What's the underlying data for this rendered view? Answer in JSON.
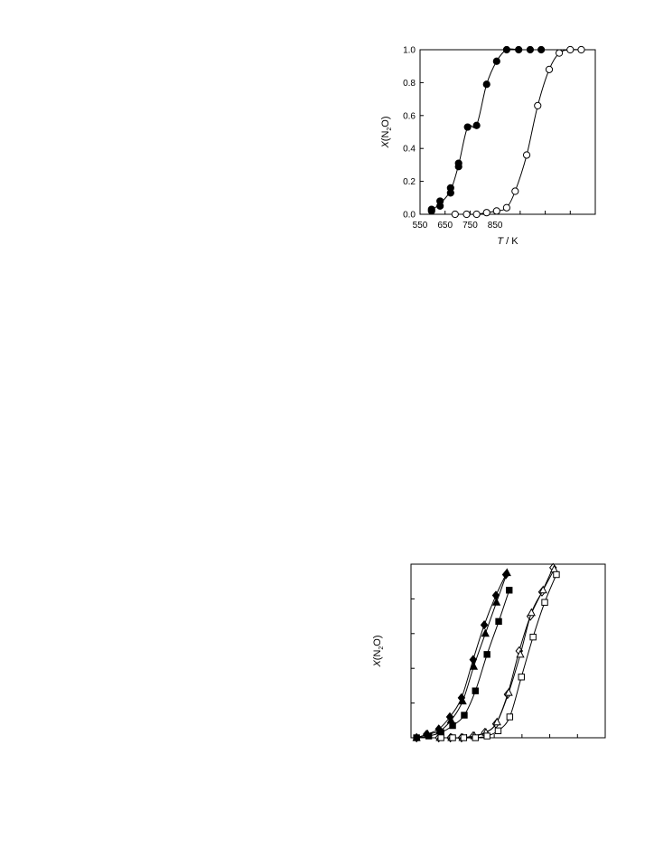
{
  "chart_data": [
    {
      "type": "scatter",
      "title": "",
      "xlabel": "T / K",
      "ylabel": "X(N2O)",
      "xlim": [
        550,
        900
      ],
      "ylim": [
        0,
        1.0
      ],
      "x_ticks": [
        "550",
        "650",
        "750",
        "850"
      ],
      "y_ticks": [
        "0.0",
        "0.2",
        "0.4",
        "0.6",
        "0.8",
        "1.0"
      ],
      "grid": false,
      "legend": "none",
      "series": [
        {
          "marker": "filled-circle",
          "x": [
            573,
            573,
            590,
            590,
            611,
            611,
            627,
            627,
            645,
            663,
            683,
            703,
            723,
            747,
            770,
            792
          ],
          "y": [
            0.02,
            0.03,
            0.05,
            0.08,
            0.13,
            0.16,
            0.29,
            0.31,
            0.53,
            0.54,
            0.79,
            0.93,
            1.0,
            1.0,
            1.0,
            1.0
          ]
        },
        {
          "marker": "open-circle",
          "x": [
            620,
            643,
            663,
            683,
            703,
            723,
            740,
            763,
            785,
            808,
            828,
            850,
            872
          ],
          "y": [
            0.0,
            0.0,
            0.0,
            0.01,
            0.02,
            0.04,
            0.14,
            0.36,
            0.66,
            0.88,
            0.98,
            1.0,
            1.0
          ]
        }
      ]
    },
    {
      "type": "scatter",
      "title": "",
      "xlabel": "",
      "ylabel": "X(N2O)",
      "xlim": [
        550,
        900
      ],
      "ylim": [
        0,
        1.0
      ],
      "x_ticks": [],
      "y_ticks": [],
      "grid": false,
      "legend": "none",
      "series": [
        {
          "marker": "filled-diamond",
          "x": [
            560,
            578,
            600,
            620,
            641,
            662,
            682,
            703,
            721
          ],
          "y": [
            0.0,
            0.02,
            0.05,
            0.12,
            0.23,
            0.45,
            0.65,
            0.82,
            0.94
          ]
        },
        {
          "marker": "filled-triangle",
          "x": [
            560,
            580,
            602,
            622,
            643,
            663,
            684,
            704,
            723
          ],
          "y": [
            0.0,
            0.02,
            0.04,
            0.1,
            0.21,
            0.41,
            0.6,
            0.78,
            0.95
          ]
        },
        {
          "marker": "filled-square",
          "x": [
            560,
            582,
            604,
            625,
            646,
            666,
            687,
            708,
            727
          ],
          "y": [
            0.0,
            0.01,
            0.03,
            0.07,
            0.13,
            0.27,
            0.48,
            0.67,
            0.85
          ]
        },
        {
          "marker": "open-diamond",
          "x": [
            600,
            621,
            641,
            662,
            683,
            703,
            724,
            745,
            765,
            786,
            806
          ],
          "y": [
            0.0,
            0.0,
            0.0,
            0.01,
            0.03,
            0.08,
            0.25,
            0.5,
            0.7,
            0.84,
            0.98
          ]
        },
        {
          "marker": "open-triangle",
          "x": [
            602,
            623,
            643,
            664,
            685,
            705,
            726,
            747,
            767,
            788,
            808
          ],
          "y": [
            0.0,
            0.0,
            0.0,
            0.01,
            0.03,
            0.09,
            0.26,
            0.48,
            0.72,
            0.85,
            0.97
          ]
        },
        {
          "marker": "open-square",
          "x": [
            604,
            625,
            645,
            666,
            687,
            707,
            728,
            749,
            770,
            791,
            812
          ],
          "y": [
            0.0,
            0.0,
            0.0,
            0.0,
            0.01,
            0.04,
            0.12,
            0.35,
            0.58,
            0.78,
            0.94
          ]
        }
      ]
    }
  ]
}
